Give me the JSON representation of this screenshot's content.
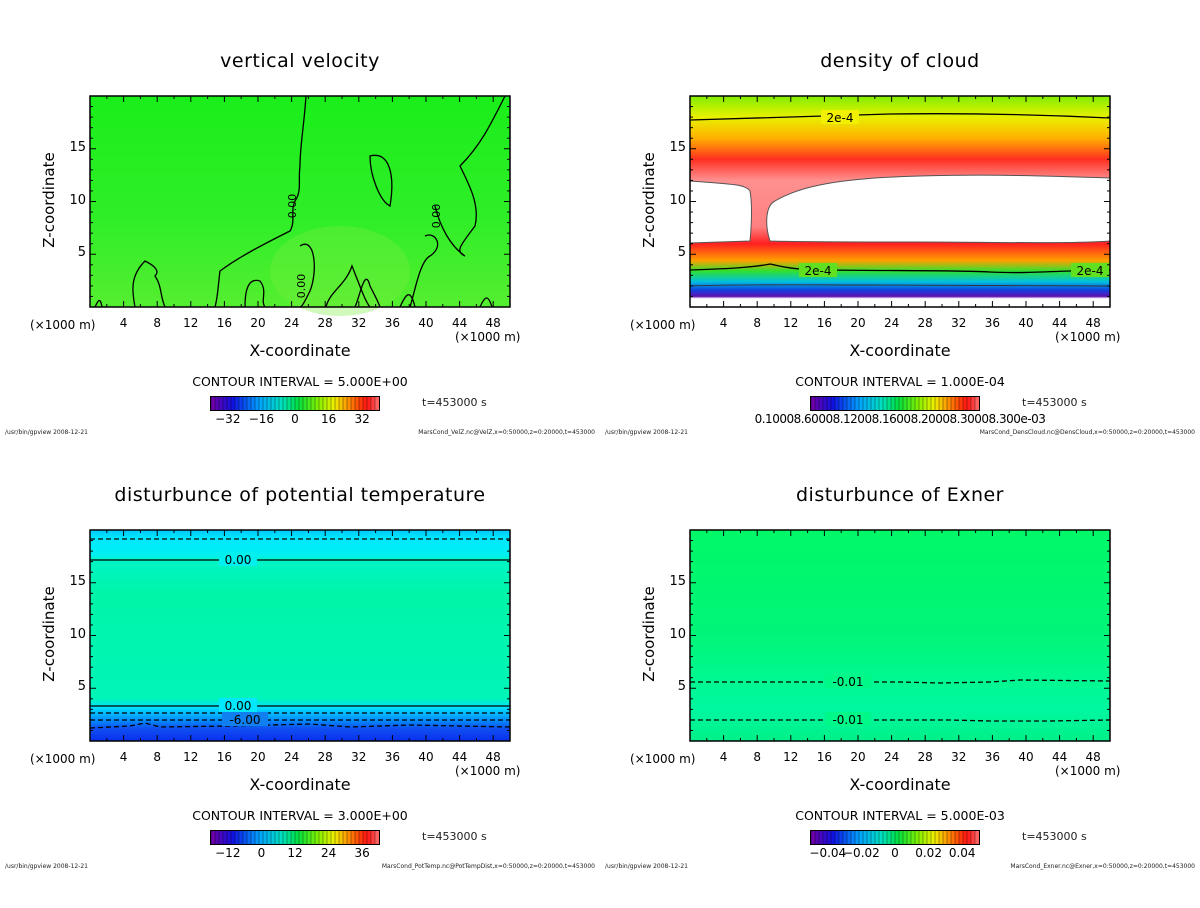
{
  "time_label": "t=453000 s",
  "footer_left": "/usr/bin/gpview  2008-12-21",
  "axis": {
    "xlabel": "X-coordinate",
    "ylabel": "Z-coordinate",
    "x_unit": "(×1000 m)",
    "x_ticks": [
      "4",
      "8",
      "12",
      "16",
      "20",
      "24",
      "28",
      "32",
      "36",
      "40",
      "44",
      "48"
    ],
    "y_ticks": [
      "5",
      "10",
      "15"
    ]
  },
  "chart_data": [
    {
      "type": "heatmap",
      "title": "vertical velocity",
      "xlabel": "X-coordinate",
      "ylabel": "Z-coordinate",
      "xlim": [
        0,
        50
      ],
      "ylim": [
        0,
        20
      ],
      "contour_interval": "CONTOUR INTERVAL = 5.000E+00",
      "contour_labels": [
        "0.00",
        "0.00",
        "0.00"
      ],
      "colorbar_ticks": [
        "-32",
        "-16",
        "0",
        "16",
        "32"
      ],
      "colorbar_range": [
        -40,
        40
      ],
      "footer_right": "MarsCond_VelZ.nc@VelZ,x=0:50000,z=0:20000,t=453000",
      "colors": {
        "fill": "#22ee22"
      }
    },
    {
      "type": "heatmap",
      "title": "density of cloud",
      "xlabel": "X-coordinate",
      "ylabel": "Z-coordinate",
      "xlim": [
        0,
        50
      ],
      "ylim": [
        0,
        20
      ],
      "contour_interval": "CONTOUR INTERVAL = 1.000E-04",
      "contour_labels": [
        "2e-4",
        "2e-4",
        "2e-4"
      ],
      "colorbar_ticks_text": "0.10008.60008.12008.16008.20008.30008.300e-03",
      "footer_right": "MarsCond_DensCloud.nc@DensCloud,x=0:50000,z=0:20000,t=453000",
      "colors": {
        "top": "#88ee00",
        "mid": "#ff2020",
        "empty": "#ffffff"
      }
    },
    {
      "type": "heatmap",
      "title": "disturbunce of potential temperature",
      "xlabel": "X-coordinate",
      "ylabel": "Z-coordinate",
      "xlim": [
        0,
        50
      ],
      "ylim": [
        0,
        20
      ],
      "contour_interval": "CONTOUR INTERVAL = 3.000E+00",
      "contour_labels": [
        "0.00",
        "0.00",
        "-6.00"
      ],
      "colorbar_ticks": [
        "-12",
        "0",
        "12",
        "24",
        "36"
      ],
      "colorbar_range": [
        -18,
        42
      ],
      "footer_right": "MarsCond_PotTemp.nc@PotTempDist,x=0:50000,z=0:20000,t=453000",
      "colors": {
        "fill": "#00f5b0",
        "top": "#00e5ff",
        "bottom": "#0a3cf0"
      }
    },
    {
      "type": "heatmap",
      "title": "disturbunce of Exner",
      "xlabel": "X-coordinate",
      "ylabel": "Z-coordinate",
      "xlim": [
        0,
        50
      ],
      "ylim": [
        0,
        20
      ],
      "contour_interval": "CONTOUR INTERVAL = 5.000E-03",
      "contour_labels": [
        "-0.01",
        "-0.01"
      ],
      "colorbar_ticks": [
        "-0.04",
        "-0.02",
        "0",
        "0.02",
        "0.04"
      ],
      "colorbar_range": [
        -0.05,
        0.05
      ],
      "footer_right": "MarsCond_Exner.nc@Exner,x=0:50000,z=0:20000,t=453000",
      "colors": {
        "fill": "#00f570",
        "lower": "#00f898"
      }
    }
  ]
}
